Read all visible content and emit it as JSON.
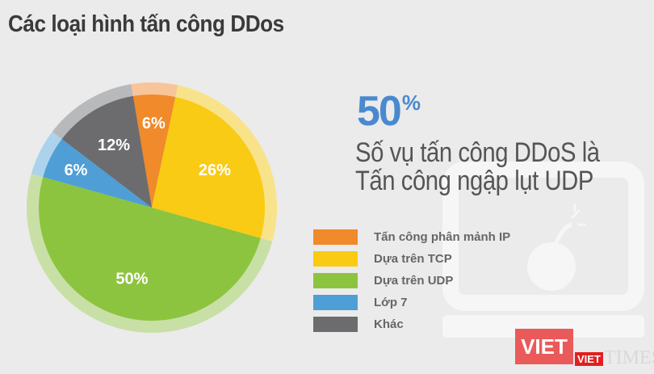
{
  "title": "Các loại hình tấn công DDos",
  "highlight": {
    "value": "50",
    "unit": "%",
    "line1": "Số vụ tấn công DDoS là",
    "line2": "Tấn công ngập lụt UDP"
  },
  "chart_data": {
    "type": "pie",
    "categories": [
      "Tấn công phân mảnh IP",
      "Dựa trên TCP",
      "Dựa trên UDP",
      "Lớp 7",
      "Khác"
    ],
    "values": [
      6,
      26,
      50,
      6,
      12
    ],
    "labels": [
      "6%",
      "26%",
      "50%",
      "6%",
      "12%"
    ],
    "colors": [
      "#f08a2a",
      "#f9cb14",
      "#8dc43f",
      "#4f9fd6",
      "#6c6c6e"
    ],
    "ring_colors": [
      "#f8c59a",
      "#f8e38a",
      "#c8e0a6",
      "#add3ec",
      "#b8b9bb"
    ],
    "legend_position": "right"
  },
  "watermark": {
    "brand": "VIET",
    "sub": "VIET",
    "times": "TIMES"
  }
}
